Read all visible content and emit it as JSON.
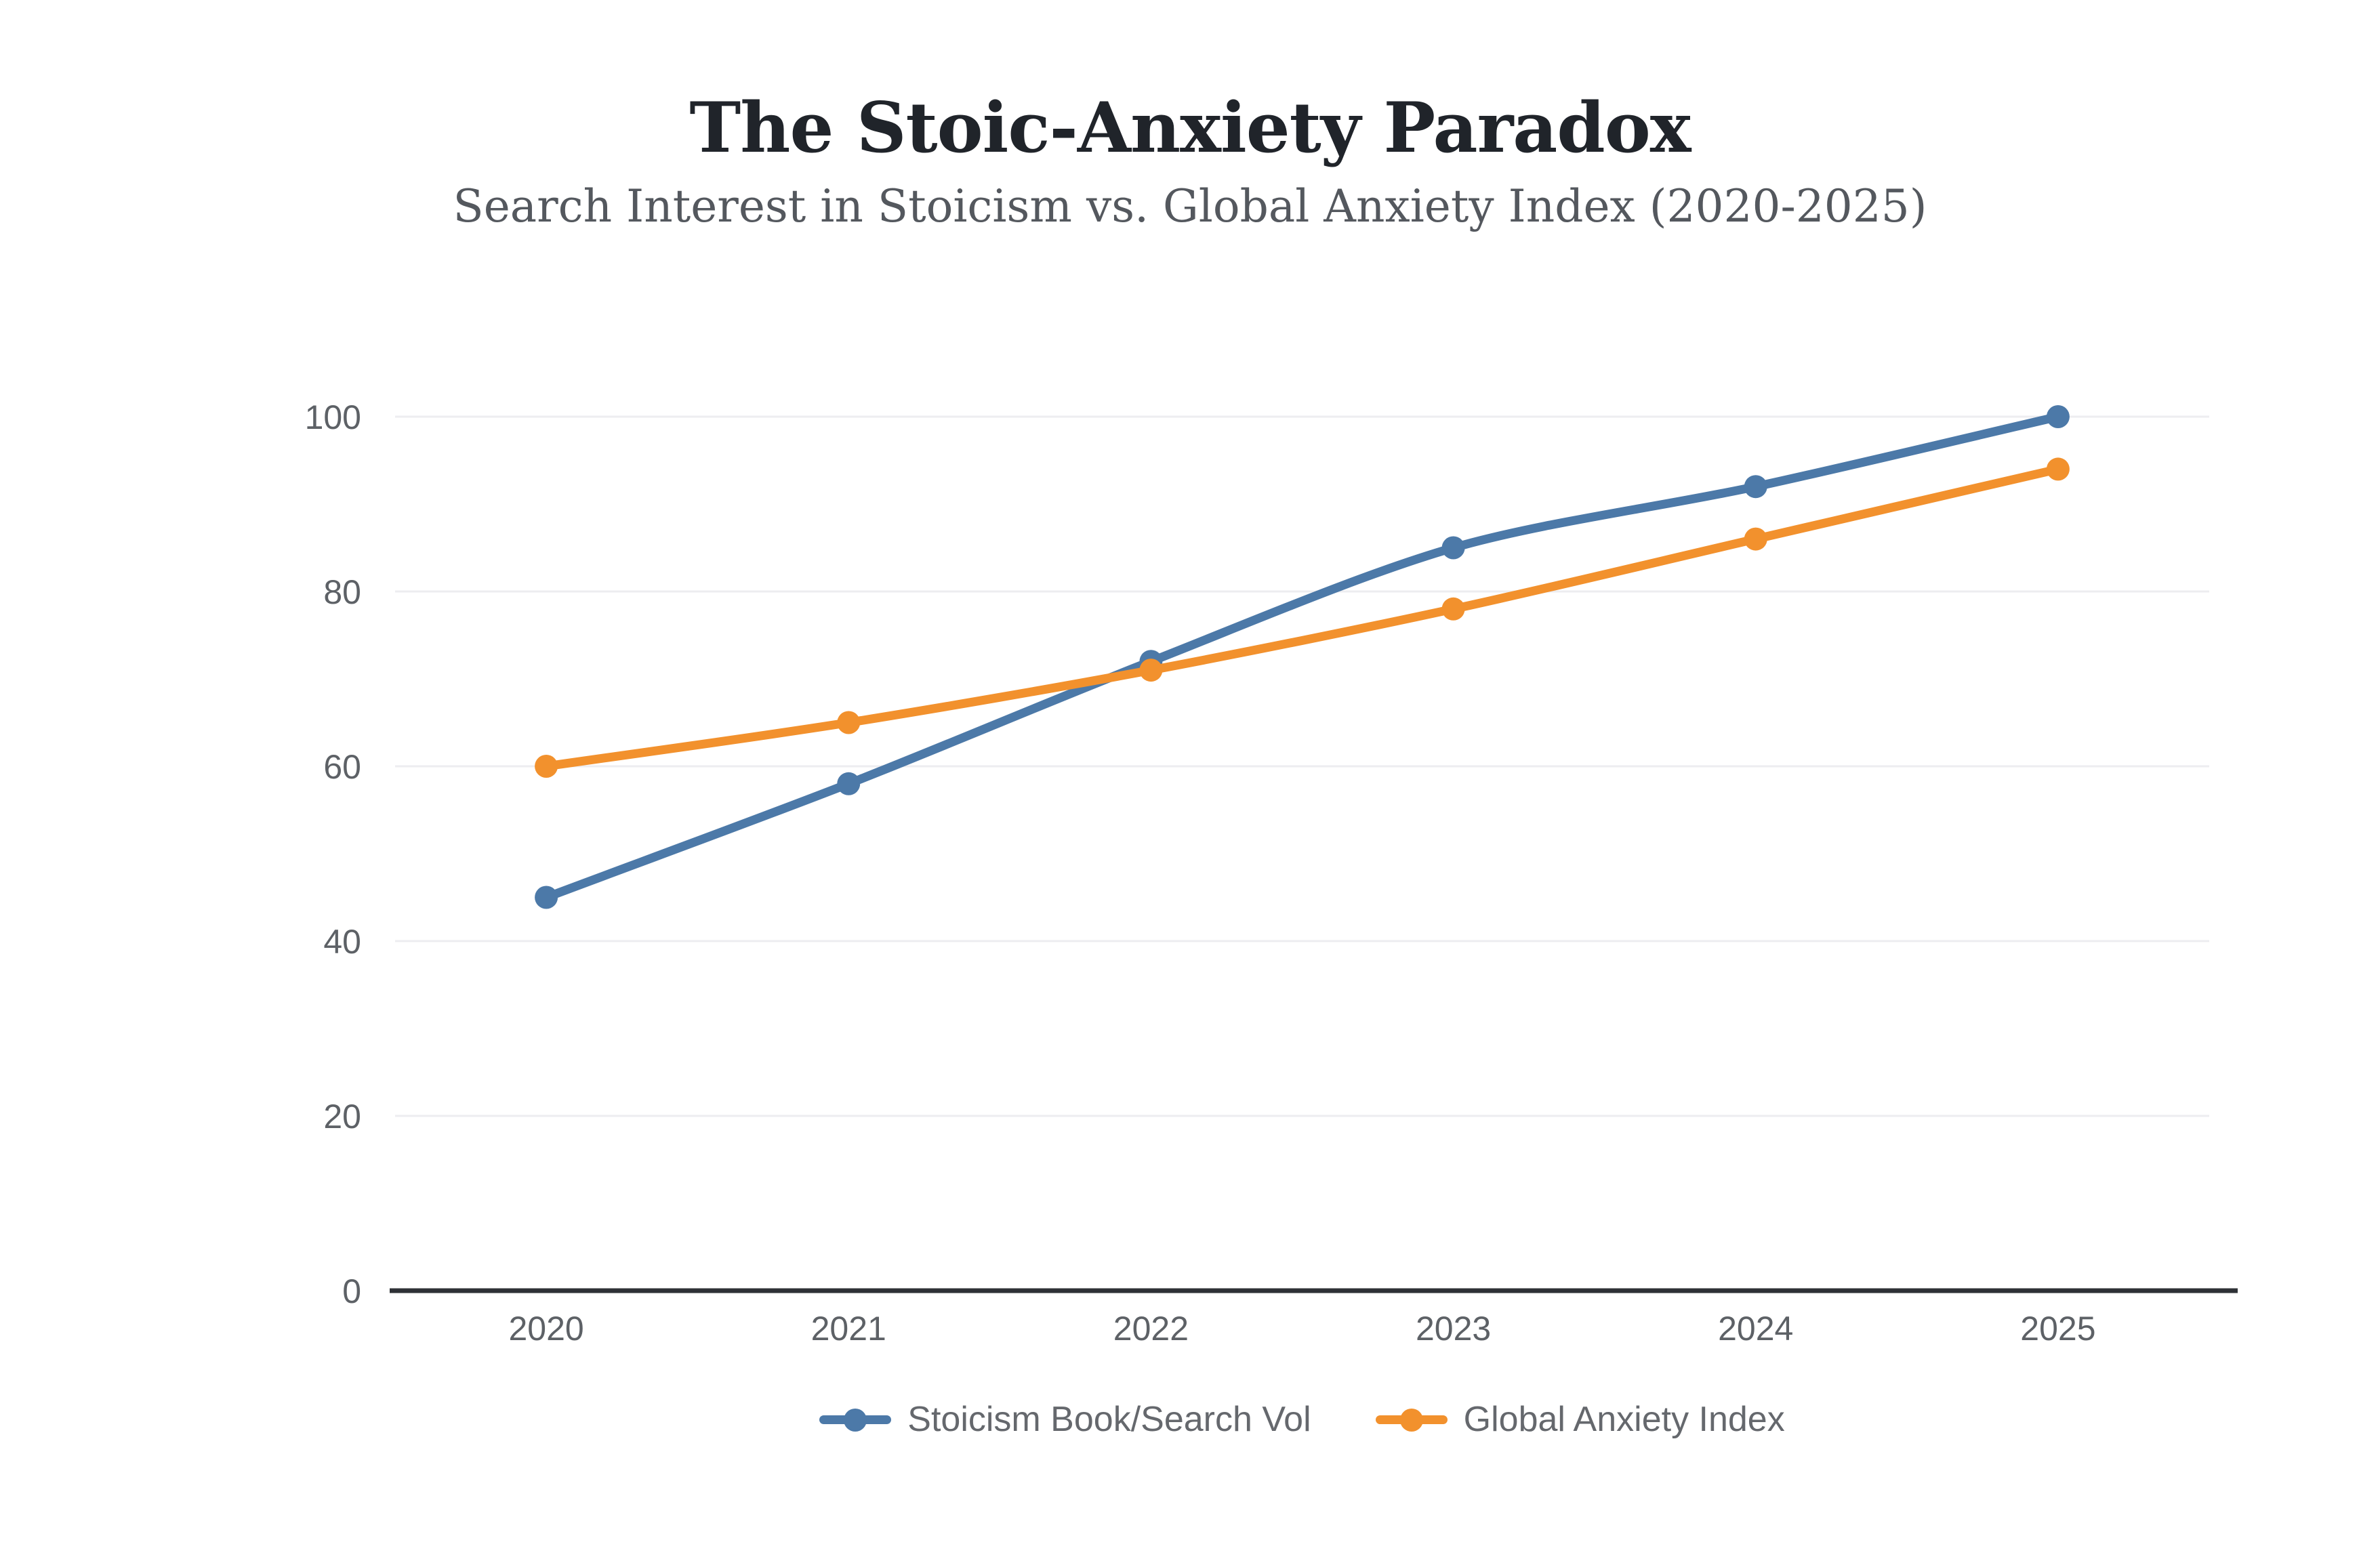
{
  "page": {
    "background": "#ffffff"
  },
  "header": {
    "title": "The Stoic-Anxiety Paradox",
    "subtitle": "Search Interest in Stoicism vs. Global Anxiety Index (2020-2025)"
  },
  "chart_data": {
    "type": "line",
    "categories": [
      "2020",
      "2021",
      "2022",
      "2023",
      "2024",
      "2025"
    ],
    "series": [
      {
        "name": "Stoicism Book/Search Vol",
        "color": "#4C79A8",
        "values": [
          45,
          58,
          72,
          85,
          92,
          100
        ]
      },
      {
        "name": "Global Anxiety Index",
        "color": "#F2912D",
        "values": [
          60,
          65,
          71,
          78,
          86,
          94
        ]
      }
    ],
    "title": "The Stoic-Anxiety Paradox",
    "subtitle": "Search Interest in Stoicism vs. Global Anxiety Index (2020-2025)",
    "xlabel": "",
    "ylabel": "",
    "ylim": [
      0,
      100
    ],
    "yticks": [
      0,
      20,
      40,
      60,
      80,
      100
    ],
    "grid": true,
    "legend_position": "bottom",
    "colors": {
      "grid_line": "#ededf0",
      "axis_line": "#2e3136",
      "tick_label": "#5d6166",
      "legend_label": "#65686d",
      "title_text": "#20242a",
      "subtitle_text": "#54585e"
    }
  }
}
